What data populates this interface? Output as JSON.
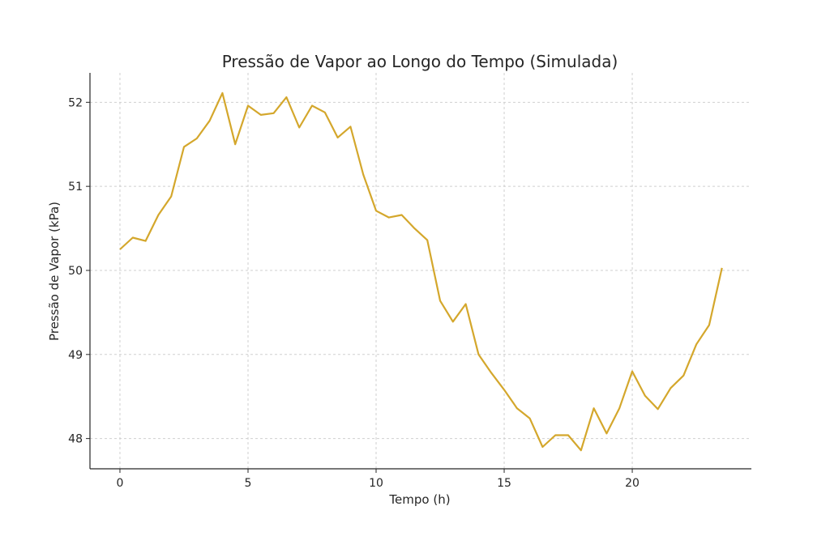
{
  "chart_data": {
    "type": "line",
    "title": "Pressão de Vapor ao Longo do Tempo (Simulada)",
    "xlabel": "Tempo (h)",
    "ylabel": "Pressão de Vapor (kPa)",
    "xlim": [
      -1.17,
      24.65
    ],
    "ylim": [
      47.64,
      52.35
    ],
    "xticks": [
      0,
      5,
      10,
      15,
      20
    ],
    "yticks": [
      48,
      49,
      50,
      51,
      52
    ],
    "grid": true,
    "line_color": "#D4A72C",
    "x": [
      0,
      0.5,
      1,
      1.5,
      2,
      2.5,
      3,
      3.5,
      4,
      4.5,
      5,
      5.5,
      6,
      6.5,
      7,
      7.5,
      8,
      8.5,
      9,
      9.5,
      10,
      10.5,
      11,
      11.5,
      12,
      12.5,
      13,
      13.5,
      14,
      14.5,
      15,
      15.5,
      16,
      16.5,
      17,
      17.5,
      18,
      18.5,
      19,
      19.5,
      20,
      20.5,
      21,
      21.5,
      22,
      22.5,
      23,
      23.5
    ],
    "y": [
      50.25,
      50.39,
      50.35,
      50.66,
      50.88,
      51.47,
      51.57,
      51.78,
      52.11,
      51.5,
      51.96,
      51.85,
      51.87,
      52.06,
      51.7,
      51.96,
      51.88,
      51.58,
      51.71,
      51.14,
      50.71,
      50.63,
      50.66,
      50.5,
      50.36,
      49.64,
      49.39,
      49.6,
      49.0,
      48.78,
      48.58,
      48.36,
      48.24,
      47.9,
      48.04,
      48.04,
      47.86,
      48.36,
      48.06,
      48.36,
      48.8,
      48.51,
      48.35,
      48.6,
      48.75,
      49.12,
      49.35,
      50.03
    ]
  }
}
